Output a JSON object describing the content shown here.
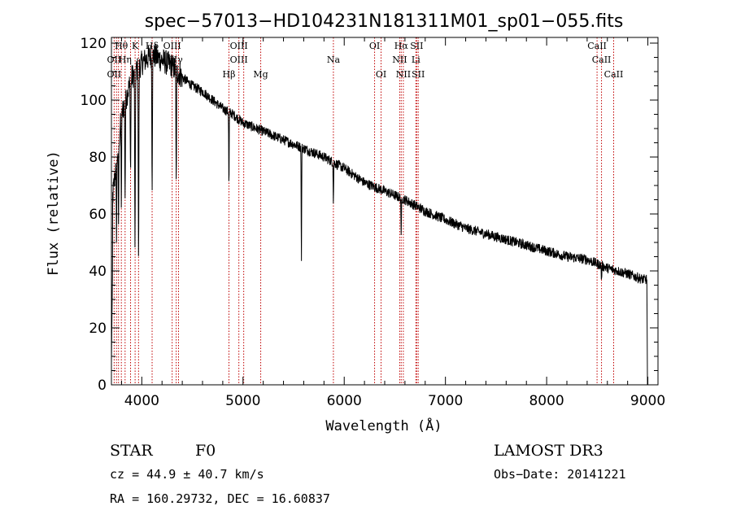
{
  "chart_data": {
    "type": "line",
    "title": "spec−57013−HD104231N181311M01_sp01−055.fits",
    "xlabel": "Wavelength (Å)",
    "ylabel": "Flux (relative)",
    "xlim": [
      3700,
      9100
    ],
    "ylim": [
      0,
      122
    ],
    "xticks": [
      4000,
      5000,
      6000,
      7000,
      8000,
      9000
    ],
    "yticks": [
      0,
      20,
      40,
      60,
      80,
      100,
      120
    ],
    "continuum": [
      [
        3700,
        62
      ],
      [
        3800,
        95
      ],
      [
        3900,
        108
      ],
      [
        4000,
        113
      ],
      [
        4100,
        116
      ],
      [
        4200,
        114
      ],
      [
        4300,
        112
      ],
      [
        4400,
        108
      ],
      [
        4500,
        105
      ],
      [
        4600,
        103
      ],
      [
        4700,
        100
      ],
      [
        4800,
        97
      ],
      [
        4900,
        95
      ],
      [
        5000,
        92
      ],
      [
        5200,
        89
      ],
      [
        5400,
        86
      ],
      [
        5600,
        83
      ],
      [
        5800,
        80
      ],
      [
        6000,
        76
      ],
      [
        6200,
        71
      ],
      [
        6400,
        68
      ],
      [
        6600,
        65
      ],
      [
        6800,
        61
      ],
      [
        7000,
        58
      ],
      [
        7200,
        55
      ],
      [
        7400,
        53
      ],
      [
        7600,
        51
      ],
      [
        7800,
        49
      ],
      [
        8000,
        47
      ],
      [
        8200,
        45
      ],
      [
        8400,
        44
      ],
      [
        8600,
        41
      ],
      [
        8800,
        39
      ],
      [
        8950,
        37
      ]
    ],
    "absorption": [
      {
        "wl": 3750,
        "depth": 25
      },
      {
        "wl": 3770,
        "depth": 28
      },
      {
        "wl": 3798,
        "depth": 30
      },
      {
        "wl": 3835,
        "depth": 33
      },
      {
        "wl": 3889,
        "depth": 32
      },
      {
        "wl": 3933,
        "depth": 65
      },
      {
        "wl": 3968,
        "depth": 70
      },
      {
        "wl": 4102,
        "depth": 45
      },
      {
        "wl": 4340,
        "depth": 40
      },
      {
        "wl": 4861,
        "depth": 28
      },
      {
        "wl": 5577,
        "depth": 42
      },
      {
        "wl": 5893,
        "depth": 15
      },
      {
        "wl": 6563,
        "depth": 15
      },
      {
        "wl": 8542,
        "depth": 6
      }
    ],
    "lines": [
      {
        "label": "Hθ",
        "wl": 3798,
        "row": 0
      },
      {
        "label": "K",
        "wl": 3934,
        "row": 0
      },
      {
        "label": "Hδ",
        "wl": 4102,
        "row": 0
      },
      {
        "label": "OIII",
        "wl": 4300,
        "row": 0
      },
      {
        "label": "OIII",
        "wl": 4959,
        "row": 0
      },
      {
        "label": "OI",
        "wl": 6300,
        "row": 0
      },
      {
        "label": "Hα",
        "wl": 6563,
        "row": 0
      },
      {
        "label": "SII",
        "wl": 6716,
        "row": 0
      },
      {
        "label": "CaII",
        "wl": 8498,
        "row": 0
      },
      {
        "label": "OII",
        "wl": 3727,
        "row": 1
      },
      {
        "label": "Hη",
        "wl": 3835,
        "row": 1
      },
      {
        "label": "Hγ",
        "wl": 4340,
        "row": 1
      },
      {
        "label": "OIII",
        "wl": 4959,
        "row": 1
      },
      {
        "label": "Na",
        "wl": 5893,
        "row": 1
      },
      {
        "label": "NII",
        "wl": 6548,
        "row": 1
      },
      {
        "label": "Li",
        "wl": 6708,
        "row": 1
      },
      {
        "label": "CaII",
        "wl": 8542,
        "row": 1
      },
      {
        "label": "OII",
        "wl": 3727,
        "row": 2
      },
      {
        "label": "Hβ",
        "wl": 4861,
        "row": 2
      },
      {
        "label": "Mg",
        "wl": 5175,
        "row": 2
      },
      {
        "label": "OI",
        "wl": 6364,
        "row": 2
      },
      {
        "label": "NII",
        "wl": 6584,
        "row": 2
      },
      {
        "label": "SII",
        "wl": 6731,
        "row": 2
      },
      {
        "label": "CaII",
        "wl": 8662,
        "row": 2
      }
    ],
    "line_markers": [
      3727,
      3750,
      3770,
      3798,
      3835,
      3889,
      3934,
      3968,
      4102,
      4300,
      4340,
      4363,
      4861,
      4959,
      5007,
      5175,
      5893,
      6300,
      6364,
      6548,
      6563,
      6584,
      6708,
      6716,
      6731,
      8498,
      8542,
      8662
    ]
  },
  "info": {
    "class": "STAR",
    "subclass": "F0",
    "survey": "LAMOST DR3",
    "cz": "cz = 44.9 ± 40.7 km/s",
    "obs_date": "Obs−Date: 20141221",
    "coords": "RA = 160.29732, DEC =  16.60837"
  },
  "colors": {
    "spectrum": "#000000",
    "line_marker": "#c00000",
    "axis": "#000000"
  }
}
